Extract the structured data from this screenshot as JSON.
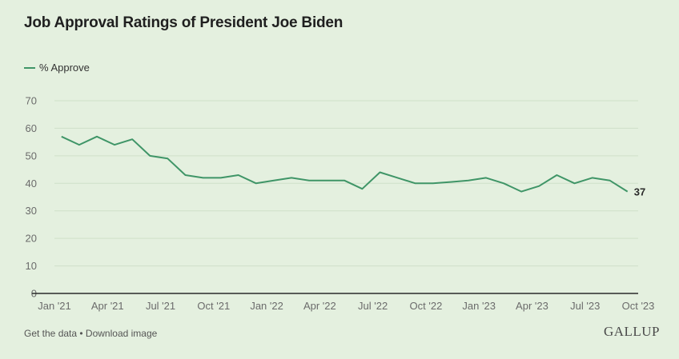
{
  "colors": {
    "line": "#3f9567",
    "grid": "#cfdfc9",
    "axis": "#2a2a2a"
  },
  "footer": {
    "get_data": "Get the data",
    "separator": " • ",
    "download": "Download image"
  },
  "brand": "GALLUP",
  "chart_data": {
    "type": "line",
    "title": "Job Approval Ratings of President Joe Biden",
    "legend": [
      {
        "name": "% Approve",
        "position": "top-left"
      }
    ],
    "xlabel": "",
    "ylabel": "",
    "ylim": [
      0,
      70
    ],
    "yticks": [
      0,
      10,
      20,
      30,
      40,
      50,
      60,
      70
    ],
    "xtick_labels": [
      "Jan '21",
      "Apr '21",
      "Jul '21",
      "Oct '21",
      "Jan '22",
      "Apr '22",
      "Jul '22",
      "Oct '22",
      "Jan '23",
      "Apr '23",
      "Jul '23",
      "Oct '23"
    ],
    "xlim_months": [
      0,
      33
    ],
    "grid": true,
    "series": [
      {
        "name": "% Approve",
        "x_months": [
          0.4,
          1.4,
          2.4,
          3.4,
          4.4,
          5.4,
          6.4,
          7.4,
          8.4,
          9.4,
          10.4,
          11.4,
          12.4,
          13.4,
          14.4,
          15.4,
          16.4,
          17.4,
          18.4,
          19.4,
          20.4,
          21.4,
          22.4,
          23.4,
          24.4,
          25.4,
          26.4,
          27.4,
          28.4,
          29.4,
          30.4,
          31.4,
          32.4
        ],
        "values": [
          57,
          54,
          57,
          54,
          56,
          50,
          49,
          43,
          42,
          42,
          43,
          40,
          41,
          42,
          41,
          41,
          41,
          38,
          44,
          42,
          40,
          40,
          40.5,
          41,
          42,
          40,
          37,
          39,
          43,
          40,
          42,
          41,
          37
        ]
      }
    ],
    "end_label": "37"
  }
}
